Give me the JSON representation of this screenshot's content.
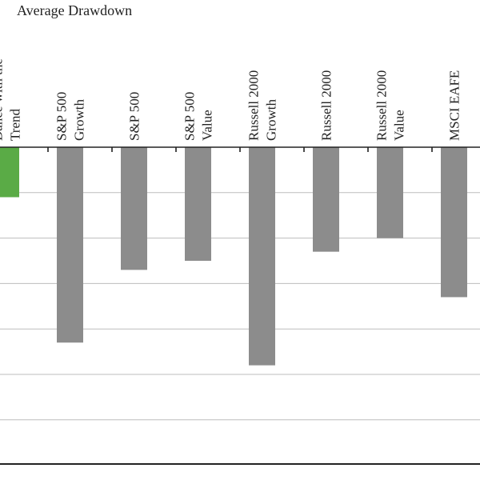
{
  "chart_data": {
    "type": "bar",
    "title": "Average Drawdown",
    "categories": [
      [
        "Dance with the",
        "Trend"
      ],
      [
        "S&P 500",
        "Growth"
      ],
      [
        "S&P 500"
      ],
      [
        "S&P 500",
        "Value"
      ],
      [
        "Russell 2000",
        "Growth"
      ],
      [
        "Russell 2000"
      ],
      [
        "Russell 2000",
        "Value"
      ],
      [
        "MSCI EAFE"
      ]
    ],
    "values": [
      -11,
      -43,
      -27,
      -25,
      -48,
      -23,
      -20,
      -33
    ],
    "ylim": [
      -70,
      0
    ],
    "grid": true,
    "colors": {
      "highlight": "#5aab46",
      "default": "#8c8c8c"
    },
    "highlight_index": 0
  }
}
